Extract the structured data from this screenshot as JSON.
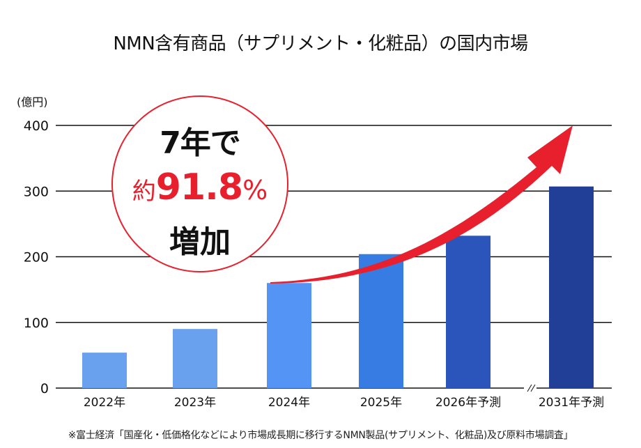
{
  "chart_data": {
    "type": "bar",
    "title": "NMN含有商品（サプリメント・化粧品）の国内市場",
    "ylabel": "(億円)",
    "xlabel": "",
    "ylim": [
      0,
      400
    ],
    "yticks": [
      0,
      100,
      200,
      300,
      400
    ],
    "ytick_labels": [
      "0",
      "100",
      "200",
      "300",
      "400"
    ],
    "grid": true,
    "categories": [
      "2022年",
      "2023年",
      "2024年",
      "2025年",
      "2026年予測",
      "2031年予測"
    ],
    "values": [
      54,
      90,
      160,
      204,
      232,
      307
    ],
    "bar_colors": [
      "#6aa1ee",
      "#6aa1ee",
      "#5494f5",
      "#377ce3",
      "#2b55ba",
      "#223f98"
    ],
    "axis_break_before": "2031年予測",
    "annotation": {
      "line1": "7年で",
      "line2_prefix": "約",
      "line2_value": "91.8",
      "line2_suffix": "%",
      "line3": "増加",
      "color": "#e8202d"
    },
    "arrow_color": "#e8202d"
  },
  "footnote": "※富士経済「国産化・低価格化などにより市場成長期に移行するNMN製品(サプリメント、化粧品)及び原料市場調査」"
}
